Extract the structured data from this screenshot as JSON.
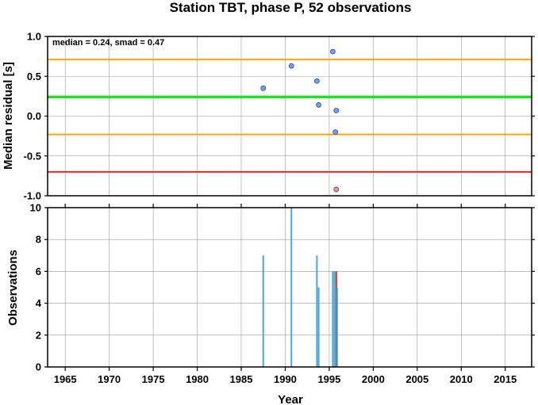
{
  "chart_data": [
    {
      "type": "scatter",
      "title": "Station TBT, phase P, 52 observations",
      "ylabel": "Median residual [s]",
      "xlim": [
        1963,
        2018
      ],
      "ylim": [
        -1.0,
        1.0
      ],
      "yticks": [
        "1.0",
        "0.5",
        "0.0",
        "-0.5",
        "-1.0"
      ],
      "grid": true,
      "annotation": "median = 0.24, smad = 0.47",
      "reference_lines": [
        {
          "y": 0.71,
          "color": "#ffa500"
        },
        {
          "y": 0.24,
          "color": "#22e022"
        },
        {
          "y": -0.23,
          "color": "#ffa500"
        },
        {
          "y": -0.7,
          "color": "#ee2222"
        }
      ],
      "points": [
        {
          "x": 1987.5,
          "y": 0.35,
          "color": "#6f9fff"
        },
        {
          "x": 1990.7,
          "y": 0.63,
          "color": "#6f9fff"
        },
        {
          "x": 1993.6,
          "y": 0.44,
          "color": "#6f9fff"
        },
        {
          "x": 1993.8,
          "y": 0.14,
          "color": "#6f9fff"
        },
        {
          "x": 1995.4,
          "y": 0.81,
          "color": "#6f9fff"
        },
        {
          "x": 1995.8,
          "y": 0.07,
          "color": "#6f9fff"
        },
        {
          "x": 1995.7,
          "y": -0.2,
          "color": "#6f9fff"
        },
        {
          "x": 1995.8,
          "y": -0.92,
          "color": "#ff8f7a"
        }
      ]
    },
    {
      "type": "bar",
      "xlabel": "Year",
      "ylabel": "Observations",
      "xlim": [
        1963,
        2018
      ],
      "ylim": [
        0,
        10
      ],
      "xticks": [
        "1965",
        "1970",
        "1975",
        "1980",
        "1985",
        "1990",
        "1995",
        "2000",
        "2005",
        "2010",
        "2015"
      ],
      "yticks": [
        "10",
        "8",
        "6",
        "4",
        "2",
        "0"
      ],
      "grid": true,
      "bars": [
        {
          "x": 1987.5,
          "value": 7,
          "color": "#4aa8d8"
        },
        {
          "x": 1990.7,
          "value": 10,
          "color": "#4aa8d8"
        },
        {
          "x": 1993.6,
          "value": 7,
          "color": "#4aa8d8"
        },
        {
          "x": 1993.8,
          "value": 5,
          "color": "#4aa8d8"
        },
        {
          "x": 1995.4,
          "value": 6,
          "color": "#4aa8d8"
        },
        {
          "x": 1995.6,
          "value": 6,
          "color": "#4aa8d8"
        },
        {
          "x": 1995.8,
          "value": 6,
          "color": "#ee2222"
        },
        {
          "x": 1995.9,
          "value": 5,
          "color": "#4aa8d8"
        }
      ]
    }
  ]
}
